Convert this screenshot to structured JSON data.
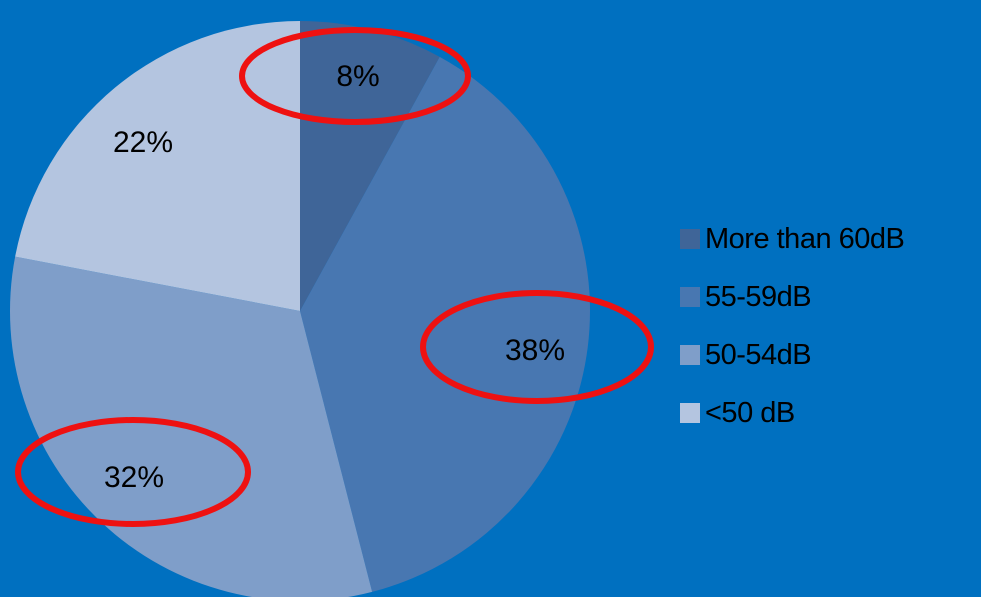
{
  "chart_data": {
    "type": "pie",
    "title": "",
    "slices": [
      {
        "name": "More than 60dB",
        "value": 8,
        "label": "8%",
        "color": "#3f6598",
        "highlighted": true
      },
      {
        "name": "55-59dB",
        "value": 38,
        "label": "38%",
        "color": "#4877b1",
        "highlighted": true
      },
      {
        "name": "50-54dB",
        "value": 32,
        "label": "32%",
        "color": "#7f9ec9",
        "highlighted": true
      },
      {
        "name": "<50 dB",
        "value": 22,
        "label": "22%",
        "color": "#b4c5e0",
        "highlighted": false
      }
    ],
    "start_angle": "12 o'clock",
    "direction": "clockwise",
    "legend_position": "right",
    "highlight_color": "#ee1111",
    "background_color": "#0070c0"
  }
}
